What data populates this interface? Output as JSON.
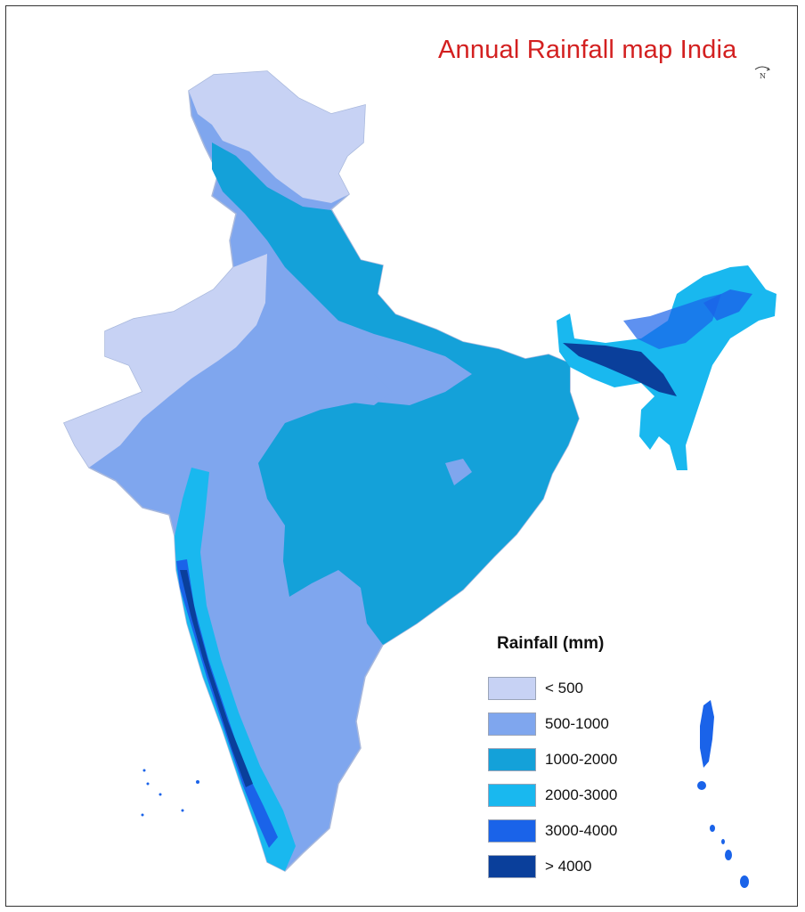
{
  "map": {
    "title": "Annual Rainfall map India",
    "north_marker": "N",
    "legend": {
      "title": "Rainfall (mm)",
      "items": [
        {
          "label": "< 500",
          "color": "#c7d2f4"
        },
        {
          "label": "500-1000",
          "color": "#7fa6ee"
        },
        {
          "label": "1000-2000",
          "color": "#14a1d9"
        },
        {
          "label": "2000-3000",
          "color": "#19b8ef"
        },
        {
          "label": "3000-4000",
          "color": "#1a63e9"
        },
        {
          "label": "> 4000",
          "color": "#0a3f9b"
        }
      ]
    }
  }
}
